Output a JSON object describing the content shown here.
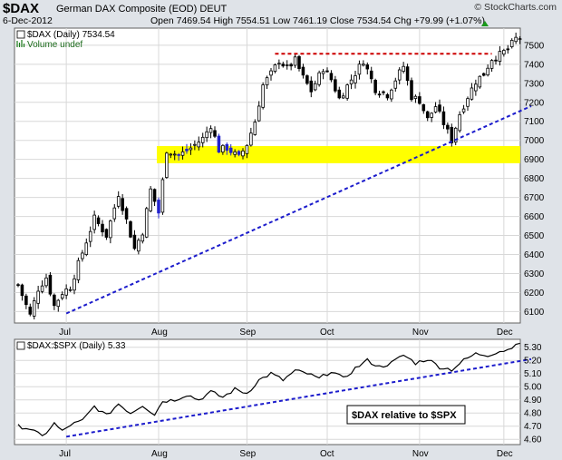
{
  "header": {
    "symbol": "$DAX",
    "subtitle": "German DAX Composite (EOD)  DEUT",
    "date": "6-Dec-2012",
    "ohlc": "Open 7469.54  High 7554.51  Low 7461.19  Close 7534.54  Chg +79.99 (+1.07%)",
    "watermark": "© StockCharts.com",
    "arrow_color": "#1a9a1a"
  },
  "chart_data": [
    {
      "type": "candlestick",
      "legend": "$DAX (Daily) 7534.54",
      "volume_label": "Volume undef",
      "y_ticks": [
        "7500",
        "7400",
        "7300",
        "7200",
        "7100",
        "7000",
        "6900",
        "6800",
        "6700",
        "6600",
        "6500",
        "6400",
        "6300",
        "6200",
        "6100"
      ],
      "x_ticks": [
        "Jul",
        "Aug",
        "Sep",
        "Oct",
        "Nov",
        "Dec"
      ],
      "ylim": [
        6040,
        7590
      ],
      "grid": true,
      "colors": {
        "up": "#ffffff",
        "down": "#000000",
        "zone_down": "#2222cc",
        "support_zone": "#ffff00",
        "resistance": "#cc0000",
        "trendline": "#1c1ccc"
      },
      "support_zone": [
        6880,
        6970
      ],
      "resistance_level": 7455,
      "trendline": {
        "from": {
          "day": 12,
          "value": 6090
        },
        "to": {
          "day": 123,
          "value": 7135
        }
      },
      "resistance_span": {
        "from_day": 64,
        "to_day": 118
      },
      "month_starts": {
        "Jul": 12,
        "Aug": 35,
        "Sep": 57,
        "Oct": 77,
        "Nov": 100,
        "Dec": 121
      },
      "anchors": [
        [
          0,
          6240
        ],
        [
          3,
          6080
        ],
        [
          5,
          6220
        ],
        [
          7,
          6280
        ],
        [
          9,
          6130
        ],
        [
          11,
          6200
        ],
        [
          13,
          6230
        ],
        [
          16,
          6410
        ],
        [
          19,
          6590
        ],
        [
          22,
          6500
        ],
        [
          25,
          6720
        ],
        [
          27,
          6580
        ],
        [
          29,
          6430
        ],
        [
          31,
          6520
        ],
        [
          33,
          6740
        ],
        [
          35,
          6620
        ],
        [
          37,
          6950
        ],
        [
          40,
          6920
        ],
        [
          43,
          6960
        ],
        [
          46,
          7010
        ],
        [
          48,
          7080
        ],
        [
          50,
          6950
        ],
        [
          52,
          6960
        ],
        [
          55,
          6910
        ],
        [
          57,
          6980
        ],
        [
          59,
          7100
        ],
        [
          61,
          7290
        ],
        [
          63,
          7350
        ],
        [
          65,
          7420
        ],
        [
          67,
          7380
        ],
        [
          69,
          7420
        ],
        [
          71,
          7330
        ],
        [
          73,
          7260
        ],
        [
          76,
          7380
        ],
        [
          78,
          7320
        ],
        [
          80,
          7220
        ],
        [
          83,
          7320
        ],
        [
          86,
          7420
        ],
        [
          89,
          7270
        ],
        [
          92,
          7240
        ],
        [
          94,
          7320
        ],
        [
          96,
          7390
        ],
        [
          98,
          7230
        ],
        [
          100,
          7210
        ],
        [
          102,
          7110
        ],
        [
          104,
          7180
        ],
        [
          106,
          7090
        ],
        [
          108,
          7000
        ],
        [
          110,
          7140
        ],
        [
          112,
          7230
        ],
        [
          114,
          7310
        ],
        [
          116,
          7350
        ],
        [
          118,
          7430
        ],
        [
          120,
          7450
        ],
        [
          122,
          7480
        ],
        [
          124,
          7534.54
        ]
      ]
    },
    {
      "type": "line",
      "legend": "$DAX:$SPX (Daily) 5.33",
      "annotation": "$DAX relative to $SPX",
      "y_ticks": [
        "5.30",
        "5.20",
        "5.10",
        "5.00",
        "4.90",
        "4.80",
        "4.70",
        "4.60"
      ],
      "x_ticks": [
        "Jul",
        "Aug",
        "Sep",
        "Oct",
        "Nov",
        "Dec"
      ],
      "ylim": [
        4.56,
        5.36
      ],
      "colors": {
        "line": "#000000",
        "trendline": "#1c1ccc"
      },
      "trendline": {
        "from": {
          "day": 12,
          "value": 4.62
        },
        "to": {
          "day": 124,
          "value": 5.19
        }
      },
      "anchors": [
        [
          0,
          4.7
        ],
        [
          3,
          4.68
        ],
        [
          6,
          4.62
        ],
        [
          9,
          4.72
        ],
        [
          11,
          4.66
        ],
        [
          13,
          4.71
        ],
        [
          16,
          4.74
        ],
        [
          19,
          4.85
        ],
        [
          22,
          4.78
        ],
        [
          25,
          4.87
        ],
        [
          28,
          4.8
        ],
        [
          31,
          4.86
        ],
        [
          34,
          4.79
        ],
        [
          36,
          4.89
        ],
        [
          39,
          4.9
        ],
        [
          42,
          4.94
        ],
        [
          45,
          4.9
        ],
        [
          48,
          4.96
        ],
        [
          51,
          4.92
        ],
        [
          54,
          4.98
        ],
        [
          57,
          4.95
        ],
        [
          60,
          5.05
        ],
        [
          63,
          5.1
        ],
        [
          66,
          5.05
        ],
        [
          69,
          5.12
        ],
        [
          72,
          5.1
        ],
        [
          75,
          5.06
        ],
        [
          78,
          5.12
        ],
        [
          81,
          5.06
        ],
        [
          84,
          5.14
        ],
        [
          87,
          5.2
        ],
        [
          90,
          5.15
        ],
        [
          93,
          5.18
        ],
        [
          96,
          5.24
        ],
        [
          99,
          5.18
        ],
        [
          102,
          5.21
        ],
        [
          105,
          5.15
        ],
        [
          108,
          5.13
        ],
        [
          111,
          5.2
        ],
        [
          114,
          5.25
        ],
        [
          117,
          5.24
        ],
        [
          120,
          5.27
        ],
        [
          122,
          5.28
        ],
        [
          124,
          5.33
        ]
      ]
    }
  ]
}
